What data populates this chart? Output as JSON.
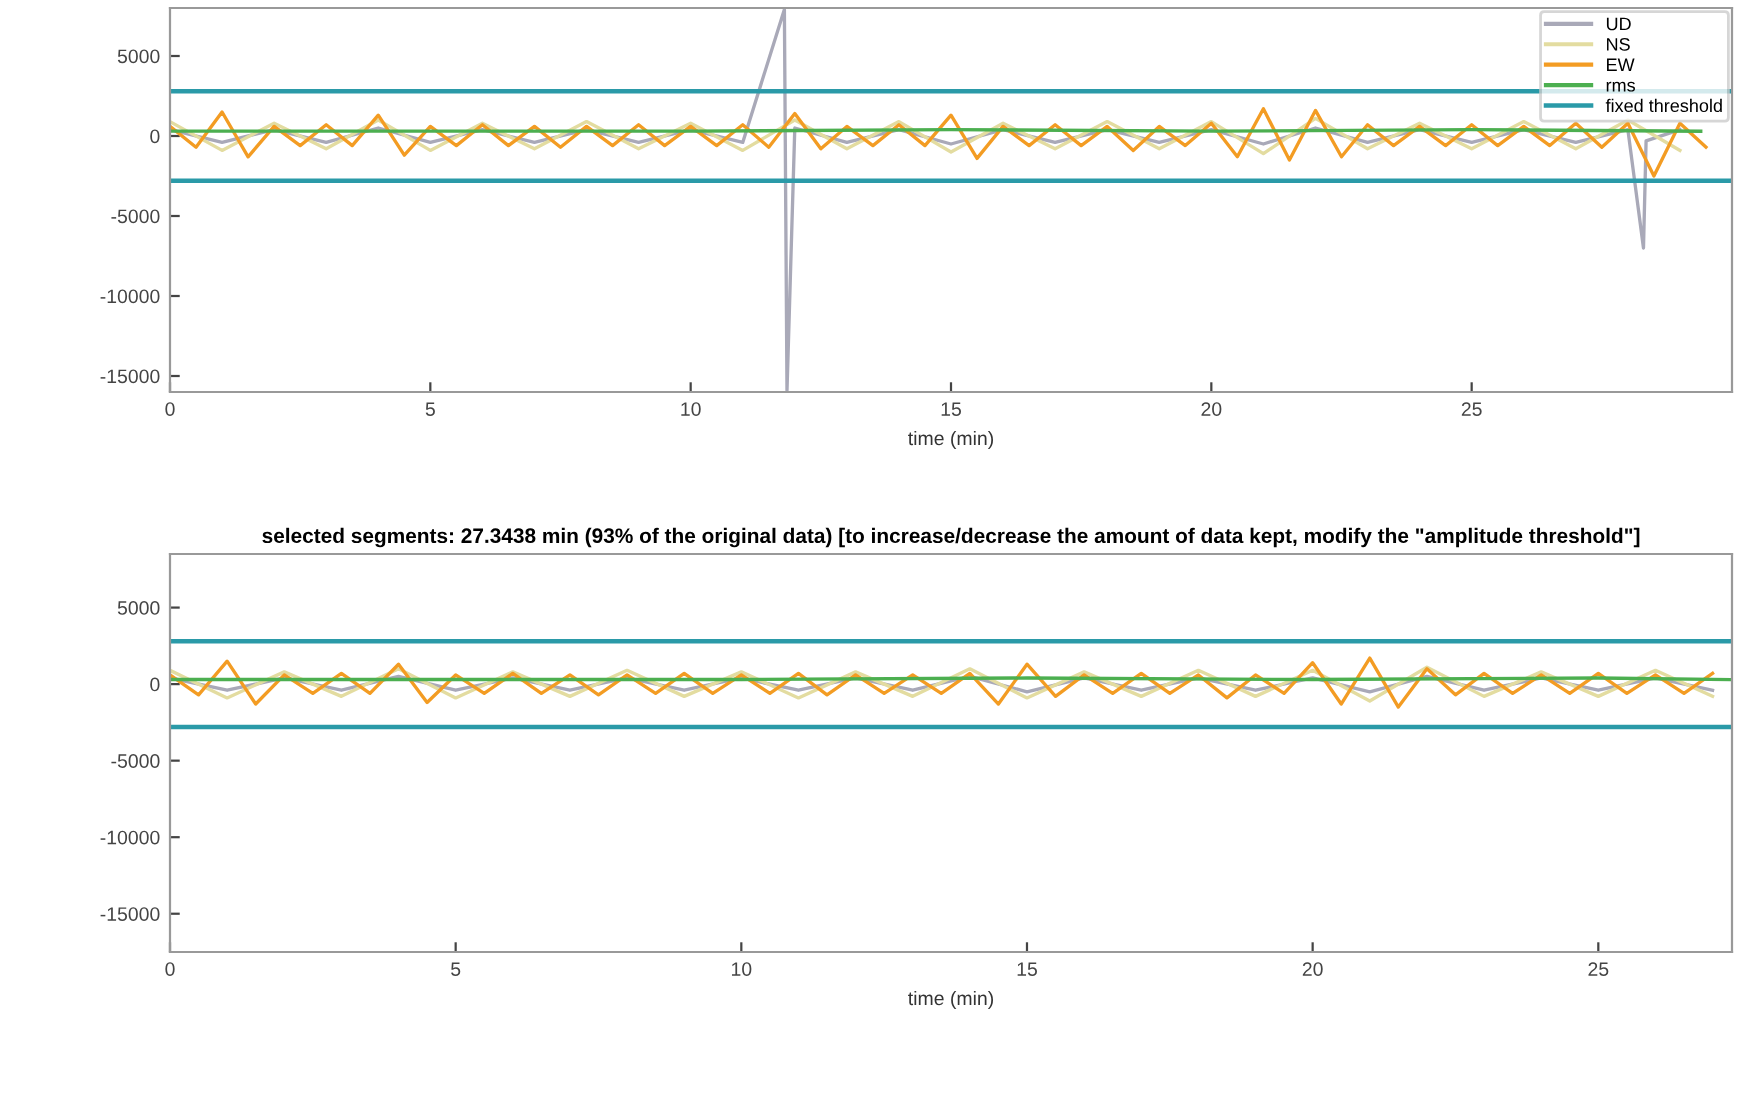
{
  "chart_data": [
    {
      "type": "line",
      "xlabel": "time (min)",
      "xlim": [
        0,
        30
      ],
      "ylim": [
        -16000,
        8000
      ],
      "xticks": [
        0,
        5,
        10,
        15,
        20,
        25
      ],
      "yticks": [
        -15000,
        -10000,
        -5000,
        0,
        5000
      ],
      "legend": "top right",
      "series": [
        {
          "name": "UD",
          "color": "#a9a9b8",
          "x": [
            0,
            1,
            2,
            3,
            4,
            5,
            6,
            7,
            8,
            9,
            10,
            11,
            11.8,
            11.85,
            12,
            13,
            14,
            15,
            16,
            17,
            18,
            19,
            20,
            21,
            22,
            23,
            24,
            25,
            26,
            27,
            28,
            28.3,
            28.35,
            29
          ],
          "values": [
            400,
            -400,
            400,
            -400,
            500,
            -400,
            400,
            -400,
            400,
            -400,
            400,
            -400,
            7900,
            -15900,
            500,
            -400,
            400,
            -500,
            400,
            -400,
            400,
            -400,
            400,
            -500,
            500,
            -400,
            400,
            -400,
            400,
            -400,
            400,
            -7000,
            -300,
            400
          ]
        },
        {
          "name": "NS",
          "color": "#e3dca0",
          "x": [
            0,
            1,
            2,
            3,
            4,
            5,
            6,
            7,
            8,
            9,
            10,
            11,
            12,
            13,
            14,
            15,
            16,
            17,
            18,
            19,
            20,
            21,
            22,
            23,
            24,
            25,
            26,
            27,
            28,
            29
          ],
          "values": [
            900,
            -900,
            800,
            -800,
            1000,
            -900,
            800,
            -800,
            900,
            -800,
            800,
            -900,
            1000,
            -800,
            900,
            -1000,
            800,
            -800,
            900,
            -800,
            900,
            -1100,
            1100,
            -800,
            800,
            -800,
            900,
            -800,
            1000,
            -900
          ]
        },
        {
          "name": "EW",
          "color": "#f39c23",
          "x": [
            0,
            0.5,
            1,
            1.5,
            2,
            2.5,
            3,
            3.5,
            4,
            4.5,
            5,
            5.5,
            6,
            6.5,
            7,
            7.5,
            8,
            8.5,
            9,
            9.5,
            10,
            10.5,
            11,
            11.5,
            12,
            12.5,
            13,
            13.5,
            14,
            14.5,
            15,
            15.5,
            16,
            16.5,
            17,
            17.5,
            18,
            18.5,
            19,
            19.5,
            20,
            20.5,
            21,
            21.5,
            22,
            22.5,
            23,
            23.5,
            24,
            24.5,
            25,
            25.5,
            26,
            26.5,
            27,
            27.5,
            28,
            28.5,
            29,
            29.5
          ],
          "values": [
            600,
            -700,
            1500,
            -1300,
            600,
            -600,
            700,
            -600,
            1300,
            -1200,
            600,
            -600,
            700,
            -600,
            600,
            -700,
            600,
            -600,
            700,
            -600,
            600,
            -600,
            700,
            -700,
            1400,
            -800,
            600,
            -600,
            700,
            -600,
            1300,
            -1400,
            600,
            -600,
            700,
            -600,
            600,
            -900,
            600,
            -600,
            800,
            -1300,
            1700,
            -1500,
            1600,
            -1300,
            700,
            -600,
            600,
            -600,
            700,
            -600,
            600,
            -600,
            800,
            -700,
            800,
            -2500,
            800,
            -700
          ]
        },
        {
          "name": "rms",
          "color": "#4caf50",
          "x": [
            0,
            5,
            10,
            15,
            20,
            25,
            29.4
          ],
          "values": [
            300,
            300,
            300,
            400,
            300,
            400,
            300
          ]
        }
      ],
      "ref_lines": [
        {
          "axis": "y",
          "value": 2800,
          "label": "fixed threshold",
          "color": "#2a9aa8"
        },
        {
          "axis": "y",
          "value": -2800,
          "color": "#2a9aa8"
        }
      ]
    },
    {
      "type": "line",
      "title": "selected segments: 27.3438 min (93% of the original data) [to increase/decrease the amount of data kept, modify the \"amplitude threshold\"]",
      "xlabel": "time (min)",
      "xlim": [
        0,
        27.34
      ],
      "ylim": [
        -17500,
        8500
      ],
      "xticks": [
        0,
        5,
        10,
        15,
        20,
        25
      ],
      "yticks": [
        -15000,
        -10000,
        -5000,
        0,
        5000
      ],
      "series": [
        {
          "color": "#a9a9b8",
          "x": [
            0,
            1,
            2,
            3,
            4,
            5,
            6,
            7,
            8,
            9,
            10,
            11,
            12,
            13,
            14,
            15,
            16,
            17,
            18,
            19,
            20,
            21,
            22,
            23,
            24,
            25,
            26,
            27
          ],
          "values": [
            400,
            -400,
            400,
            -400,
            500,
            -400,
            400,
            -400,
            400,
            -400,
            400,
            -400,
            400,
            -400,
            500,
            -500,
            400,
            -400,
            400,
            -400,
            400,
            -500,
            500,
            -400,
            400,
            -400,
            400,
            -400
          ]
        },
        {
          "color": "#e3dca0",
          "x": [
            0,
            1,
            2,
            3,
            4,
            5,
            6,
            7,
            8,
            9,
            10,
            11,
            12,
            13,
            14,
            15,
            16,
            17,
            18,
            19,
            20,
            21,
            22,
            23,
            24,
            25,
            26,
            27
          ],
          "values": [
            900,
            -900,
            800,
            -800,
            1000,
            -900,
            800,
            -800,
            900,
            -800,
            800,
            -900,
            800,
            -800,
            1000,
            -900,
            800,
            -800,
            900,
            -800,
            900,
            -1100,
            1100,
            -800,
            800,
            -800,
            900,
            -800
          ]
        },
        {
          "color": "#f39c23",
          "x": [
            0,
            0.5,
            1,
            1.5,
            2,
            2.5,
            3,
            3.5,
            4,
            4.5,
            5,
            5.5,
            6,
            6.5,
            7,
            7.5,
            8,
            8.5,
            9,
            9.5,
            10,
            10.5,
            11,
            11.5,
            12,
            12.5,
            13,
            13.5,
            14,
            14.5,
            15,
            15.5,
            16,
            16.5,
            17,
            17.5,
            18,
            18.5,
            19,
            19.5,
            20,
            20.5,
            21,
            21.5,
            22,
            22.5,
            23,
            23.5,
            24,
            24.5,
            25,
            25.5,
            26,
            26.5,
            27
          ],
          "values": [
            600,
            -700,
            1500,
            -1300,
            600,
            -600,
            700,
            -600,
            1300,
            -1200,
            600,
            -600,
            700,
            -600,
            600,
            -700,
            600,
            -600,
            700,
            -600,
            600,
            -600,
            700,
            -700,
            600,
            -600,
            600,
            -600,
            700,
            -1300,
            1300,
            -800,
            600,
            -600,
            700,
            -600,
            600,
            -900,
            600,
            -600,
            1400,
            -1300,
            1700,
            -1500,
            1000,
            -700,
            700,
            -600,
            600,
            -600,
            700,
            -600,
            600,
            -600,
            700
          ]
        },
        {
          "color": "#4caf50",
          "x": [
            0,
            5,
            10,
            15,
            20,
            25,
            27.3
          ],
          "values": [
            300,
            300,
            300,
            400,
            300,
            400,
            300
          ]
        }
      ],
      "ref_lines": [
        {
          "axis": "y",
          "value": 2800,
          "color": "#2a9aa8"
        },
        {
          "axis": "y",
          "value": -2800,
          "color": "#2a9aa8"
        }
      ]
    }
  ]
}
